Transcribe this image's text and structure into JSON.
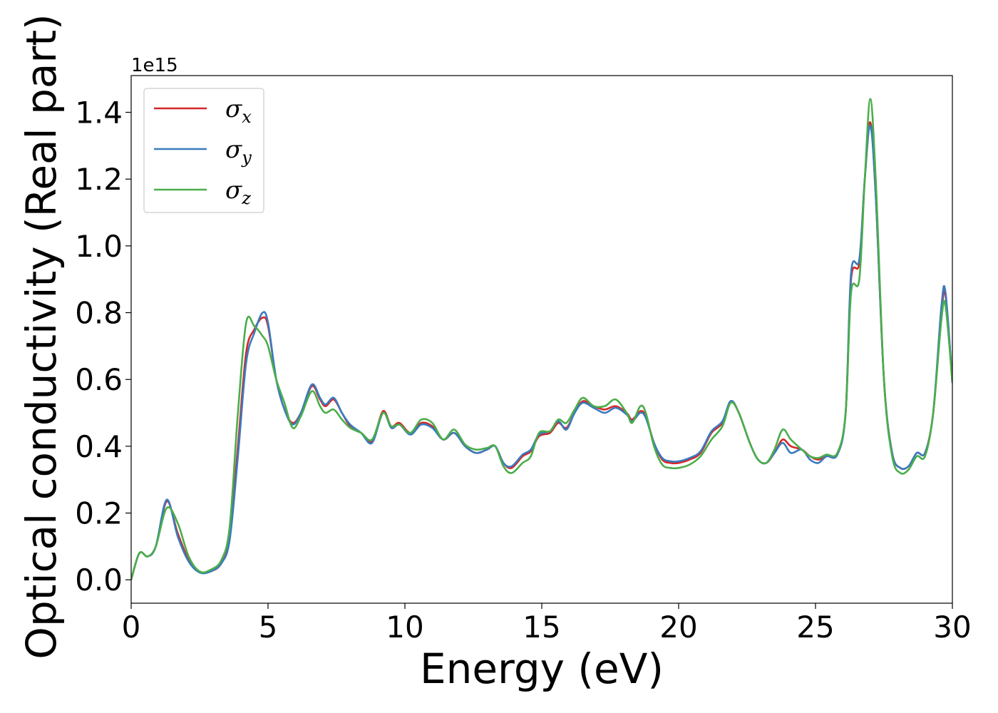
{
  "chart_data": {
    "type": "line",
    "title": "",
    "xlabel": "Energy (eV)",
    "ylabel": "Optical conductivity (Real part)",
    "y_offset_label": "1e15",
    "xlim": [
      0,
      30
    ],
    "ylim": [
      -0.07,
      1.51
    ],
    "xticks": [
      0,
      5,
      10,
      15,
      20,
      25,
      30
    ],
    "yticks": [
      0.0,
      0.2,
      0.4,
      0.6,
      0.8,
      1.0,
      1.2,
      1.4
    ],
    "xtick_labels": [
      "0",
      "5",
      "10",
      "15",
      "20",
      "25",
      "30"
    ],
    "ytick_labels": [
      "0.0",
      "0.2",
      "0.4",
      "0.6",
      "0.8",
      "1.0",
      "1.2",
      "1.4"
    ],
    "grid": false,
    "legend_position": "top-left",
    "series": [
      {
        "name": "σx",
        "symbol": "σ",
        "subscript": "x",
        "color": "#d62728",
        "points": [
          [
            0,
            0.0
          ],
          [
            0.3,
            0.08
          ],
          [
            0.6,
            0.07
          ],
          [
            0.9,
            0.1
          ],
          [
            1.3,
            0.235
          ],
          [
            1.7,
            0.14
          ],
          [
            2.1,
            0.06
          ],
          [
            2.5,
            0.025
          ],
          [
            2.9,
            0.025
          ],
          [
            3.3,
            0.05
          ],
          [
            3.6,
            0.13
          ],
          [
            3.9,
            0.4
          ],
          [
            4.2,
            0.68
          ],
          [
            4.5,
            0.75
          ],
          [
            4.8,
            0.785
          ],
          [
            5.0,
            0.76
          ],
          [
            5.3,
            0.6
          ],
          [
            5.6,
            0.51
          ],
          [
            5.9,
            0.47
          ],
          [
            6.2,
            0.5
          ],
          [
            6.6,
            0.58
          ],
          [
            6.9,
            0.54
          ],
          [
            7.1,
            0.52
          ],
          [
            7.4,
            0.54
          ],
          [
            7.7,
            0.5
          ],
          [
            8.0,
            0.46
          ],
          [
            8.4,
            0.44
          ],
          [
            8.8,
            0.415
          ],
          [
            9.2,
            0.505
          ],
          [
            9.5,
            0.46
          ],
          [
            9.8,
            0.47
          ],
          [
            10.2,
            0.44
          ],
          [
            10.6,
            0.47
          ],
          [
            11.0,
            0.46
          ],
          [
            11.4,
            0.42
          ],
          [
            11.8,
            0.44
          ],
          [
            12.2,
            0.4
          ],
          [
            12.6,
            0.38
          ],
          [
            13.0,
            0.39
          ],
          [
            13.3,
            0.4
          ],
          [
            13.6,
            0.35
          ],
          [
            13.9,
            0.335
          ],
          [
            14.3,
            0.37
          ],
          [
            14.6,
            0.385
          ],
          [
            14.9,
            0.43
          ],
          [
            15.3,
            0.44
          ],
          [
            15.6,
            0.47
          ],
          [
            15.9,
            0.455
          ],
          [
            16.2,
            0.5
          ],
          [
            16.5,
            0.535
          ],
          [
            16.9,
            0.52
          ],
          [
            17.3,
            0.51
          ],
          [
            17.7,
            0.52
          ],
          [
            18.1,
            0.5
          ],
          [
            18.3,
            0.48
          ],
          [
            18.6,
            0.505
          ],
          [
            18.8,
            0.49
          ],
          [
            19.1,
            0.41
          ],
          [
            19.4,
            0.36
          ],
          [
            19.7,
            0.35
          ],
          [
            20.0,
            0.35
          ],
          [
            20.4,
            0.36
          ],
          [
            20.8,
            0.38
          ],
          [
            21.2,
            0.44
          ],
          [
            21.6,
            0.47
          ],
          [
            21.9,
            0.535
          ],
          [
            22.2,
            0.5
          ],
          [
            22.6,
            0.41
          ],
          [
            22.9,
            0.36
          ],
          [
            23.2,
            0.35
          ],
          [
            23.5,
            0.38
          ],
          [
            23.8,
            0.42
          ],
          [
            24.1,
            0.4
          ],
          [
            24.5,
            0.39
          ],
          [
            24.8,
            0.37
          ],
          [
            25.1,
            0.36
          ],
          [
            25.4,
            0.37
          ],
          [
            25.8,
            0.38
          ],
          [
            26.1,
            0.5
          ],
          [
            26.3,
            0.9
          ],
          [
            26.6,
            0.95
          ],
          [
            26.8,
            1.2
          ],
          [
            27.0,
            1.37
          ],
          [
            27.2,
            1.15
          ],
          [
            27.5,
            0.6
          ],
          [
            27.8,
            0.38
          ],
          [
            28.1,
            0.335
          ],
          [
            28.4,
            0.34
          ],
          [
            28.7,
            0.38
          ],
          [
            29.0,
            0.38
          ],
          [
            29.3,
            0.5
          ],
          [
            29.6,
            0.8
          ],
          [
            29.75,
            0.85
          ],
          [
            30.0,
            0.59
          ]
        ]
      },
      {
        "name": "σy",
        "symbol": "σ",
        "subscript": "y",
        "color": "#3a7bbf",
        "points": [
          [
            0,
            0.0
          ],
          [
            0.3,
            0.08
          ],
          [
            0.6,
            0.07
          ],
          [
            0.9,
            0.1
          ],
          [
            1.3,
            0.24
          ],
          [
            1.7,
            0.13
          ],
          [
            2.1,
            0.055
          ],
          [
            2.5,
            0.022
          ],
          [
            2.9,
            0.025
          ],
          [
            3.3,
            0.05
          ],
          [
            3.6,
            0.12
          ],
          [
            3.9,
            0.37
          ],
          [
            4.2,
            0.65
          ],
          [
            4.5,
            0.74
          ],
          [
            4.8,
            0.8
          ],
          [
            5.0,
            0.77
          ],
          [
            5.3,
            0.6
          ],
          [
            5.6,
            0.51
          ],
          [
            5.9,
            0.465
          ],
          [
            6.2,
            0.5
          ],
          [
            6.6,
            0.585
          ],
          [
            6.9,
            0.545
          ],
          [
            7.1,
            0.525
          ],
          [
            7.4,
            0.545
          ],
          [
            7.7,
            0.5
          ],
          [
            8.0,
            0.465
          ],
          [
            8.4,
            0.44
          ],
          [
            8.8,
            0.41
          ],
          [
            9.2,
            0.5
          ],
          [
            9.5,
            0.455
          ],
          [
            9.8,
            0.465
          ],
          [
            10.2,
            0.435
          ],
          [
            10.6,
            0.465
          ],
          [
            11.0,
            0.455
          ],
          [
            11.4,
            0.42
          ],
          [
            11.8,
            0.44
          ],
          [
            12.2,
            0.4
          ],
          [
            12.6,
            0.38
          ],
          [
            13.0,
            0.39
          ],
          [
            13.3,
            0.4
          ],
          [
            13.6,
            0.35
          ],
          [
            13.9,
            0.34
          ],
          [
            14.3,
            0.375
          ],
          [
            14.6,
            0.39
          ],
          [
            14.9,
            0.435
          ],
          [
            15.3,
            0.445
          ],
          [
            15.6,
            0.475
          ],
          [
            15.9,
            0.45
          ],
          [
            16.2,
            0.5
          ],
          [
            16.5,
            0.53
          ],
          [
            16.9,
            0.515
          ],
          [
            17.3,
            0.5
          ],
          [
            17.7,
            0.515
          ],
          [
            18.1,
            0.495
          ],
          [
            18.3,
            0.475
          ],
          [
            18.6,
            0.5
          ],
          [
            18.8,
            0.485
          ],
          [
            19.1,
            0.41
          ],
          [
            19.4,
            0.365
          ],
          [
            19.7,
            0.355
          ],
          [
            20.0,
            0.355
          ],
          [
            20.4,
            0.365
          ],
          [
            20.8,
            0.385
          ],
          [
            21.2,
            0.445
          ],
          [
            21.6,
            0.475
          ],
          [
            21.9,
            0.535
          ],
          [
            22.2,
            0.5
          ],
          [
            22.6,
            0.41
          ],
          [
            22.9,
            0.36
          ],
          [
            23.2,
            0.35
          ],
          [
            23.5,
            0.38
          ],
          [
            23.8,
            0.41
          ],
          [
            24.1,
            0.38
          ],
          [
            24.5,
            0.39
          ],
          [
            24.8,
            0.36
          ],
          [
            25.1,
            0.35
          ],
          [
            25.4,
            0.37
          ],
          [
            25.8,
            0.375
          ],
          [
            26.1,
            0.5
          ],
          [
            26.3,
            0.92
          ],
          [
            26.6,
            0.96
          ],
          [
            26.8,
            1.2
          ],
          [
            27.0,
            1.36
          ],
          [
            27.2,
            1.15
          ],
          [
            27.5,
            0.6
          ],
          [
            27.8,
            0.38
          ],
          [
            28.1,
            0.335
          ],
          [
            28.4,
            0.34
          ],
          [
            28.7,
            0.38
          ],
          [
            29.0,
            0.38
          ],
          [
            29.3,
            0.5
          ],
          [
            29.6,
            0.82
          ],
          [
            29.75,
            0.86
          ],
          [
            30.0,
            0.59
          ]
        ]
      },
      {
        "name": "σz",
        "symbol": "σ",
        "subscript": "z",
        "color": "#4aae4a",
        "points": [
          [
            0,
            0.0
          ],
          [
            0.3,
            0.08
          ],
          [
            0.6,
            0.07
          ],
          [
            0.9,
            0.1
          ],
          [
            1.3,
            0.215
          ],
          [
            1.7,
            0.17
          ],
          [
            2.1,
            0.07
          ],
          [
            2.5,
            0.025
          ],
          [
            2.9,
            0.03
          ],
          [
            3.3,
            0.06
          ],
          [
            3.6,
            0.16
          ],
          [
            3.9,
            0.5
          ],
          [
            4.2,
            0.77
          ],
          [
            4.5,
            0.76
          ],
          [
            4.8,
            0.73
          ],
          [
            5.0,
            0.7
          ],
          [
            5.3,
            0.6
          ],
          [
            5.6,
            0.53
          ],
          [
            5.9,
            0.455
          ],
          [
            6.2,
            0.49
          ],
          [
            6.6,
            0.565
          ],
          [
            6.9,
            0.52
          ],
          [
            7.1,
            0.5
          ],
          [
            7.4,
            0.51
          ],
          [
            7.7,
            0.48
          ],
          [
            8.0,
            0.455
          ],
          [
            8.4,
            0.44
          ],
          [
            8.8,
            0.42
          ],
          [
            9.2,
            0.5
          ],
          [
            9.5,
            0.46
          ],
          [
            9.8,
            0.465
          ],
          [
            10.2,
            0.44
          ],
          [
            10.6,
            0.48
          ],
          [
            11.0,
            0.47
          ],
          [
            11.4,
            0.42
          ],
          [
            11.8,
            0.45
          ],
          [
            12.2,
            0.405
          ],
          [
            12.6,
            0.39
          ],
          [
            13.0,
            0.395
          ],
          [
            13.3,
            0.4
          ],
          [
            13.6,
            0.34
          ],
          [
            13.9,
            0.32
          ],
          [
            14.3,
            0.35
          ],
          [
            14.6,
            0.37
          ],
          [
            14.9,
            0.44
          ],
          [
            15.3,
            0.445
          ],
          [
            15.6,
            0.48
          ],
          [
            15.9,
            0.47
          ],
          [
            16.2,
            0.51
          ],
          [
            16.5,
            0.545
          ],
          [
            16.9,
            0.52
          ],
          [
            17.3,
            0.52
          ],
          [
            17.7,
            0.54
          ],
          [
            18.1,
            0.5
          ],
          [
            18.3,
            0.47
          ],
          [
            18.6,
            0.52
          ],
          [
            18.8,
            0.5
          ],
          [
            19.1,
            0.4
          ],
          [
            19.4,
            0.345
          ],
          [
            19.7,
            0.335
          ],
          [
            20.0,
            0.335
          ],
          [
            20.4,
            0.345
          ],
          [
            20.8,
            0.37
          ],
          [
            21.2,
            0.42
          ],
          [
            21.6,
            0.46
          ],
          [
            21.9,
            0.53
          ],
          [
            22.2,
            0.5
          ],
          [
            22.6,
            0.41
          ],
          [
            22.9,
            0.36
          ],
          [
            23.2,
            0.35
          ],
          [
            23.5,
            0.39
          ],
          [
            23.8,
            0.45
          ],
          [
            24.1,
            0.42
          ],
          [
            24.5,
            0.39
          ],
          [
            24.8,
            0.37
          ],
          [
            25.1,
            0.365
          ],
          [
            25.4,
            0.375
          ],
          [
            25.8,
            0.38
          ],
          [
            26.1,
            0.5
          ],
          [
            26.3,
            0.86
          ],
          [
            26.6,
            0.9
          ],
          [
            26.8,
            1.2
          ],
          [
            27.0,
            1.44
          ],
          [
            27.2,
            1.2
          ],
          [
            27.5,
            0.6
          ],
          [
            27.8,
            0.37
          ],
          [
            28.1,
            0.32
          ],
          [
            28.4,
            0.33
          ],
          [
            28.7,
            0.37
          ],
          [
            29.0,
            0.37
          ],
          [
            29.3,
            0.5
          ],
          [
            29.6,
            0.78
          ],
          [
            29.75,
            0.82
          ],
          [
            30.0,
            0.59
          ]
        ]
      }
    ]
  }
}
